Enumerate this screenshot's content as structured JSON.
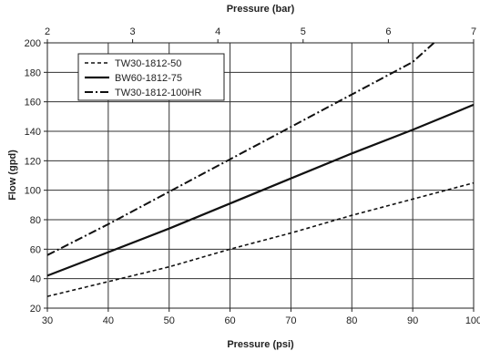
{
  "chart_data": {
    "type": "line",
    "title": "",
    "xlabel": "Pressure (psi)",
    "x2label": "Pressure (bar)",
    "ylabel": "Flow (gpd)",
    "xlim": [
      30,
      100
    ],
    "ylim": [
      20,
      200
    ],
    "x2lim": [
      2,
      7
    ],
    "x_ticks": [
      30,
      40,
      50,
      60,
      70,
      80,
      90,
      100
    ],
    "x2_ticks": [
      2,
      3,
      4,
      5,
      6,
      7
    ],
    "y_ticks": [
      20,
      40,
      60,
      80,
      100,
      120,
      140,
      160,
      180,
      200
    ],
    "grid": true,
    "legend_position": "top-left",
    "series": [
      {
        "name": "TW30-1812-50",
        "dash": "short-dash",
        "x": [
          30,
          40,
          50,
          60,
          70,
          80,
          90,
          100
        ],
        "y": [
          28,
          38,
          48,
          60,
          71,
          83,
          94,
          105
        ]
      },
      {
        "name": "BW60-1812-75",
        "dash": "solid",
        "x": [
          30,
          40,
          50,
          60,
          70,
          80,
          90,
          100
        ],
        "y": [
          42,
          58,
          74,
          91,
          108,
          125,
          141,
          158
        ]
      },
      {
        "name": "TW30-1812-100HR",
        "dash": "dash-dot",
        "x": [
          30,
          40,
          50,
          60,
          70,
          80,
          90,
          93.5
        ],
        "y": [
          56,
          77,
          99,
          121,
          143,
          165,
          187,
          200
        ]
      }
    ]
  }
}
